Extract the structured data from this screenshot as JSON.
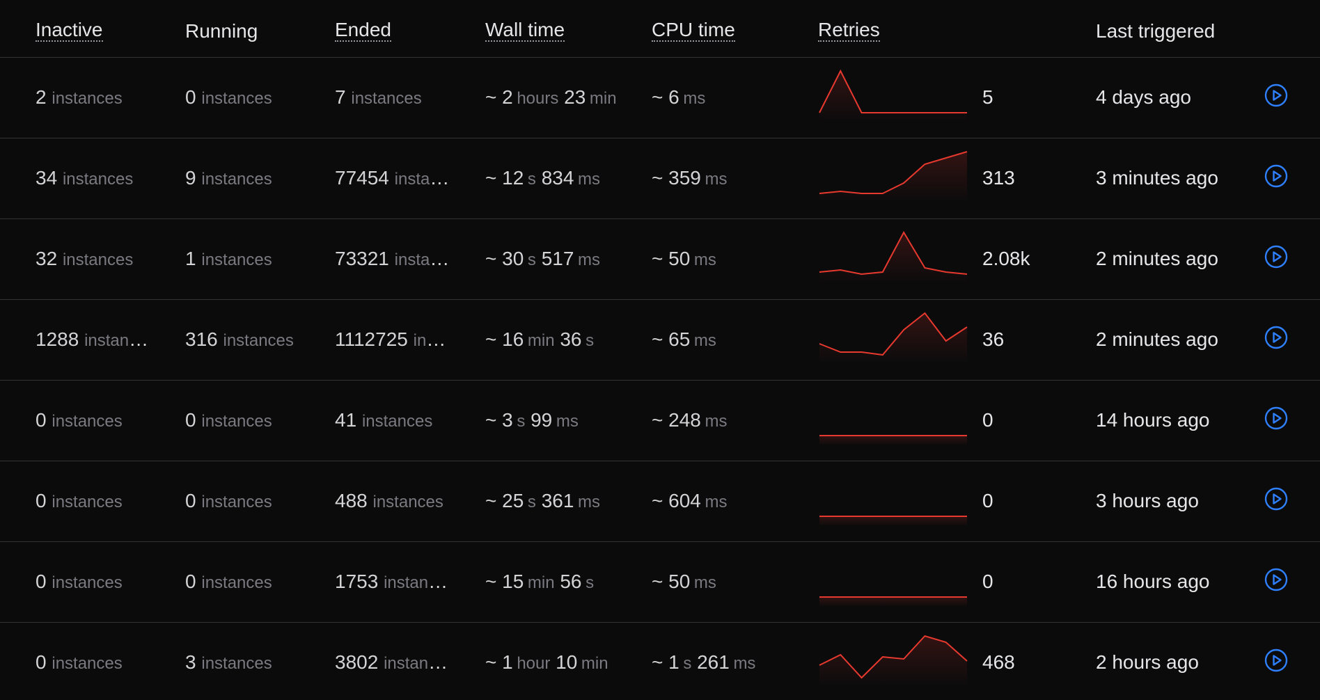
{
  "columns": {
    "inactive": "Inactive",
    "running": "Running",
    "ended": "Ended",
    "wall_time": "Wall time",
    "cpu_time": "CPU time",
    "retries": "Retries",
    "last_triggered": "Last triggered"
  },
  "accent_color": "#2f80ff",
  "sparkline_color": "#e8392f",
  "rows": [
    {
      "inactive": {
        "num": "2",
        "unit": "instances"
      },
      "running": {
        "num": "0",
        "unit": "instances"
      },
      "ended": {
        "num": "7",
        "unit": "instances"
      },
      "wall": {
        "prefix": "~",
        "a": "2",
        "au": "hours",
        "b": "23",
        "bu": "min"
      },
      "cpu": {
        "prefix": "~",
        "a": "6",
        "au": "ms",
        "b": "",
        "bu": ""
      },
      "retries_series": [
        0,
        5,
        0,
        0,
        0,
        0,
        0,
        0
      ],
      "retries": "5",
      "last_triggered": "4 days ago"
    },
    {
      "inactive": {
        "num": "34",
        "unit": "instances"
      },
      "running": {
        "num": "9",
        "unit": "instances"
      },
      "ended": {
        "num": "77454",
        "unit": "instances"
      },
      "wall": {
        "prefix": "~",
        "a": "12",
        "au": "s",
        "b": "834",
        "bu": "ms"
      },
      "cpu": {
        "prefix": "~",
        "a": "359",
        "au": "ms",
        "b": "",
        "bu": ""
      },
      "retries_series": [
        0,
        1,
        0,
        0,
        5,
        14,
        17,
        20
      ],
      "retries": "313",
      "last_triggered": "3 minutes ago"
    },
    {
      "inactive": {
        "num": "32",
        "unit": "instances"
      },
      "running": {
        "num": "1",
        "unit": "instances"
      },
      "ended": {
        "num": "73321",
        "unit": "instances"
      },
      "wall": {
        "prefix": "~",
        "a": "30",
        "au": "s",
        "b": "517",
        "bu": "ms"
      },
      "cpu": {
        "prefix": "~",
        "a": "50",
        "au": "ms",
        "b": "",
        "bu": ""
      },
      "retries_series": [
        1,
        2,
        0,
        1,
        20,
        3,
        1,
        0
      ],
      "retries": "2.08k",
      "last_triggered": "2 minutes ago"
    },
    {
      "inactive": {
        "num": "1288",
        "unit": "instances"
      },
      "running": {
        "num": "316",
        "unit": "instances"
      },
      "ended": {
        "num": "1112725",
        "unit": "instances"
      },
      "wall": {
        "prefix": "~",
        "a": "16",
        "au": "min",
        "b": "36",
        "bu": "s"
      },
      "cpu": {
        "prefix": "~",
        "a": "65",
        "au": "ms",
        "b": "",
        "bu": ""
      },
      "retries_series": [
        4,
        1,
        1,
        0,
        9,
        15,
        5,
        10
      ],
      "retries": "36",
      "last_triggered": "2 minutes ago"
    },
    {
      "inactive": {
        "num": "0",
        "unit": "instances"
      },
      "running": {
        "num": "0",
        "unit": "instances"
      },
      "ended": {
        "num": "41",
        "unit": "instances"
      },
      "wall": {
        "prefix": "~",
        "a": "3",
        "au": "s",
        "b": "99",
        "bu": "ms"
      },
      "cpu": {
        "prefix": "~",
        "a": "248",
        "au": "ms",
        "b": "",
        "bu": ""
      },
      "retries_series": [
        0,
        0,
        0,
        0,
        0,
        0,
        0,
        0
      ],
      "retries": "0",
      "last_triggered": "14 hours ago"
    },
    {
      "inactive": {
        "num": "0",
        "unit": "instances"
      },
      "running": {
        "num": "0",
        "unit": "instances"
      },
      "ended": {
        "num": "488",
        "unit": "instances"
      },
      "wall": {
        "prefix": "~",
        "a": "25",
        "au": "s",
        "b": "361",
        "bu": "ms"
      },
      "cpu": {
        "prefix": "~",
        "a": "604",
        "au": "ms",
        "b": "",
        "bu": ""
      },
      "retries_series": [
        0,
        0,
        0,
        0,
        0,
        0,
        0,
        0
      ],
      "retries": "0",
      "last_triggered": "3 hours ago"
    },
    {
      "inactive": {
        "num": "0",
        "unit": "instances"
      },
      "running": {
        "num": "0",
        "unit": "instances"
      },
      "ended": {
        "num": "1753",
        "unit": "instances"
      },
      "wall": {
        "prefix": "~",
        "a": "15",
        "au": "min",
        "b": "56",
        "bu": "s"
      },
      "cpu": {
        "prefix": "~",
        "a": "50",
        "au": "ms",
        "b": "",
        "bu": ""
      },
      "retries_series": [
        0,
        0,
        0,
        0,
        0,
        0,
        0,
        0
      ],
      "retries": "0",
      "last_triggered": "16 hours ago"
    },
    {
      "inactive": {
        "num": "0",
        "unit": "instances"
      },
      "running": {
        "num": "3",
        "unit": "instances"
      },
      "ended": {
        "num": "3802",
        "unit": "instances"
      },
      "wall": {
        "prefix": "~",
        "a": "1",
        "au": "hour",
        "b": "10",
        "bu": "min"
      },
      "cpu": {
        "prefix": "~",
        "a": "1",
        "au": "s",
        "b": "261",
        "bu": "ms"
      },
      "retries_series": [
        6,
        11,
        0,
        10,
        9,
        20,
        17,
        8
      ],
      "retries": "468",
      "last_triggered": "2 hours ago"
    }
  ]
}
